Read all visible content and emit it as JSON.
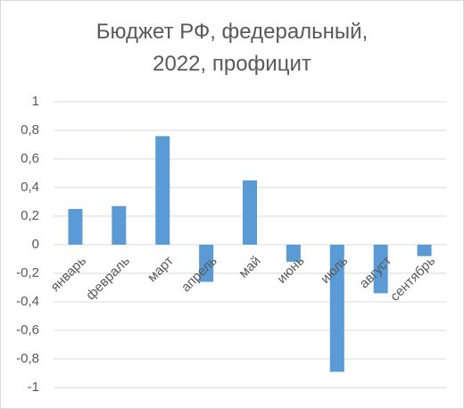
{
  "chart_data": {
    "type": "bar",
    "title": "Бюджет РФ, федеральный, 2022, профицит",
    "categories": [
      "январь",
      "февраль",
      "март",
      "апрель",
      "май",
      "июнь",
      "июль",
      "август",
      "сентябрь"
    ],
    "values": [
      0.25,
      0.27,
      0.76,
      -0.26,
      0.45,
      -0.12,
      -0.89,
      -0.34,
      -0.08
    ],
    "color": "#5b9bd5",
    "ylim": [
      -1,
      1
    ],
    "yticks": [
      -1,
      {
        "value": -0.8,
        "label": "-0,8"
      },
      {
        "value": -0.6,
        "label": "-0,6"
      },
      {
        "value": -0.4,
        "label": "-0,4"
      },
      {
        "value": -0.2,
        "label": "-0,2"
      },
      0,
      {
        "value": 0.2,
        "label": "0,2"
      },
      {
        "value": 0.4,
        "label": "0,4"
      },
      {
        "value": 0.6,
        "label": "0,6"
      },
      {
        "value": 0.8,
        "label": "0,8"
      },
      1
    ],
    "grid": true
  }
}
